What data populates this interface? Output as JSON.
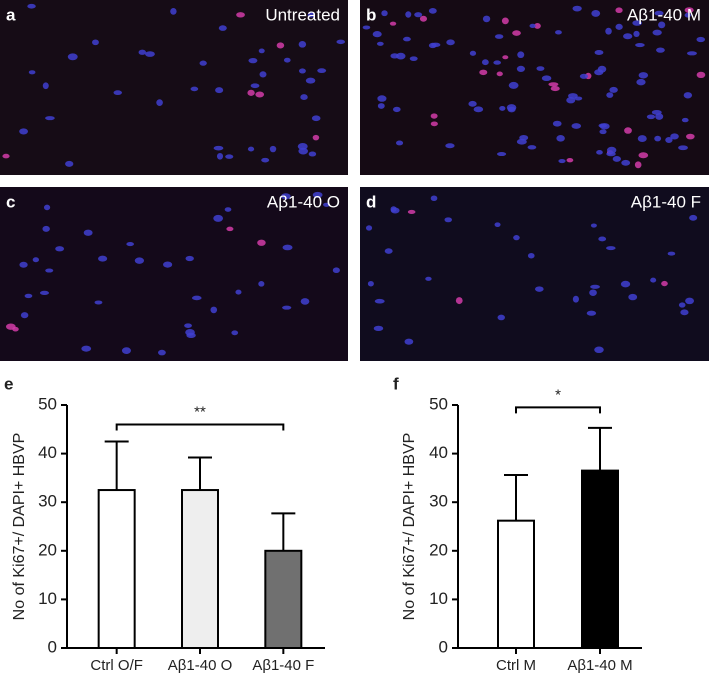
{
  "panels": [
    {
      "letter": "a",
      "label": "Untreated"
    },
    {
      "letter": "b",
      "label": "Aβ1-40 M"
    },
    {
      "letter": "c",
      "label": "Aβ1-40 O"
    },
    {
      "letter": "d",
      "label": "Aβ1-40 F"
    }
  ],
  "chart_data": [
    {
      "type": "bar",
      "panel": "e",
      "y_label": "No of Ki67+/ DAPI+ HBVP",
      "categories": [
        "Ctrl O/F",
        "Aβ1-40 O",
        "Aβ1-40 F"
      ],
      "values": [
        32.5,
        32.5,
        20
      ],
      "errors": [
        10,
        6.7,
        7.7
      ],
      "colors": [
        "#ffffff",
        "#eeeeee",
        "#707070"
      ],
      "ylim": [
        0,
        50
      ],
      "yticks": [
        0,
        10,
        20,
        30,
        40,
        50
      ],
      "significance": {
        "text": "**",
        "between": [
          "Ctrl O/F",
          "Aβ1-40 F"
        ],
        "y": 46
      }
    },
    {
      "type": "bar",
      "panel": "f",
      "y_label": "No of Ki67+/ DAPI+ HBVP",
      "categories": [
        "Ctrl M",
        "Aβ1-40 M"
      ],
      "values": [
        26.2,
        36.5
      ],
      "errors": [
        9.4,
        8.8
      ],
      "colors": [
        "#ffffff",
        "#000000"
      ],
      "ylim": [
        0,
        50
      ],
      "yticks": [
        0,
        10,
        20,
        30,
        40,
        50
      ],
      "significance": {
        "text": "*",
        "between": [
          "Ctrl M",
          "Aβ1-40 M"
        ],
        "y": 49.5
      }
    }
  ]
}
